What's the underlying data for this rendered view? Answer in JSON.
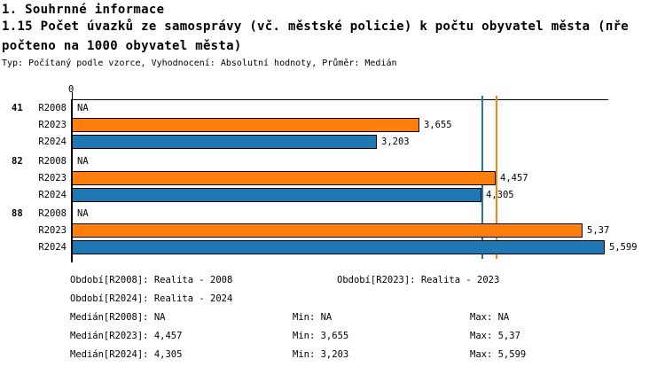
{
  "header": {
    "section_title": "1. Souhrnné informace",
    "indicator_title_line1": "1.15 Počet úvazků ze samosprávy (vč. městské policie) k počtu obyvatel města (пře",
    "indicator_title_line2": "počteno na 1000 obyvatel města)",
    "meta": "Typ: Počítaný podle vzorce, Vyhodnocení: Absolutní hodnoty, Průměr: Medián"
  },
  "chart_data": {
    "type": "bar",
    "orientation": "horizontal",
    "title": "1.15 Počet úvazků ze samosprávy (vč. městské policie) k počtu obyvatel města (přepočteno na 1000 obyvatel města)",
    "xlabel": "",
    "ylabel": "",
    "xlim": [
      0,
      5.64
    ],
    "axis": {
      "origin_label": "0"
    },
    "grid": false,
    "legend_position": "none",
    "series_colors": {
      "R2023": "#FF7F0E",
      "R2024": "#1F77B4"
    },
    "groups": [
      {
        "label": "41",
        "rows": [
          {
            "series": "R2008",
            "value": null,
            "display": "NA"
          },
          {
            "series": "R2023",
            "value": 3.655,
            "display": "3,655"
          },
          {
            "series": "R2024",
            "value": 3.203,
            "display": "3,203"
          }
        ]
      },
      {
        "label": "82",
        "rows": [
          {
            "series": "R2008",
            "value": null,
            "display": "NA"
          },
          {
            "series": "R2023",
            "value": 4.457,
            "display": "4,457"
          },
          {
            "series": "R2024",
            "value": 4.305,
            "display": "4,305"
          }
        ]
      },
      {
        "label": "88",
        "rows": [
          {
            "series": "R2008",
            "value": null,
            "display": "NA"
          },
          {
            "series": "R2023",
            "value": 5.37,
            "display": "5,37"
          },
          {
            "series": "R2024",
            "value": 5.599,
            "display": "5,599"
          }
        ]
      }
    ],
    "median_lines": [
      {
        "series": "R2024",
        "value": 4.305,
        "color": "#1F77B4"
      },
      {
        "series": "R2023",
        "value": 4.457,
        "color": "#FF7F0E"
      }
    ]
  },
  "stats": {
    "period_rows": [
      {
        "left": "Období[R2008]: Realita - 2008",
        "right": "Období[R2023]: Realita - 2023"
      },
      {
        "left": "Období[R2024]: Realita - 2024",
        "right": ""
      }
    ],
    "median_rows": [
      {
        "median": "Medián[R2008]: NA",
        "min": "Min: NA",
        "max": "Max: NA"
      },
      {
        "median": "Medián[R2023]: 4,457",
        "min": "Min: 3,655",
        "max": "Max: 5,37"
      },
      {
        "median": "Medián[R2024]: 4,305",
        "min": "Min: 3,203",
        "max": "Max: 5,599"
      }
    ]
  }
}
